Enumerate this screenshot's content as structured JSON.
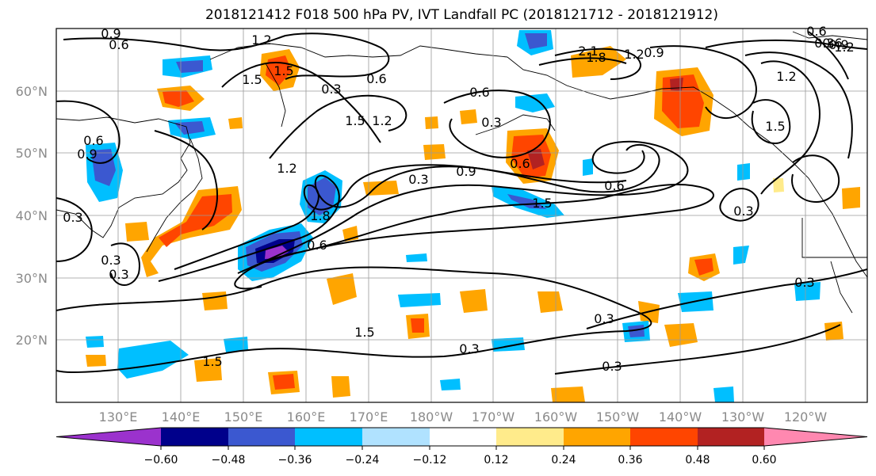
{
  "title": "2018121412 F018 500 hPa PV, IVT Landfall PC (2018121712 - 2018121912)",
  "lat_labels": [
    "60°N",
    "50°N",
    "40°N",
    "30°N",
    "20°N"
  ],
  "lon_labels": [
    "130°E",
    "140°E",
    "150°E",
    "160°E",
    "170°E",
    "180°W",
    "170°W",
    "160°W",
    "150°W",
    "140°W",
    "130°W",
    "120°W"
  ],
  "colorbar": {
    "colors": [
      "#9b32cd",
      "#00008b",
      "#3b58d0",
      "#00bfff",
      "#b0e2ff",
      "#ffffff",
      "#ffeb8b",
      "#ffa500",
      "#ff4500",
      "#b22222",
      "#ff88b0"
    ],
    "tick_labels": [
      "−0.60",
      "−0.48",
      "−0.36",
      "−0.24",
      "−0.12",
      "0.12",
      "0.24",
      "0.36",
      "0.48",
      "0.60"
    ]
  },
  "contour_labels": [
    "0.9",
    "0.6",
    "1.2",
    "1.5",
    "1.5",
    "0.6",
    "0.3",
    "1.5",
    "1.2",
    "0.6",
    "0.3",
    "2.1",
    "1.8",
    "1.2",
    "0.9",
    "0.6",
    "1.2",
    "1.5",
    "0.6",
    "0.9",
    "0.3",
    "1.2",
    "0.3",
    "1.5",
    "1.8",
    "0.6",
    "0.9",
    "0.3",
    "0.3",
    "1.5",
    "1.5",
    "0.6",
    "0.6",
    "0.3",
    "0.3",
    "0.3",
    "0.3",
    "0.3",
    "0.3",
    "0.6",
    "0.9",
    "1.2"
  ]
}
